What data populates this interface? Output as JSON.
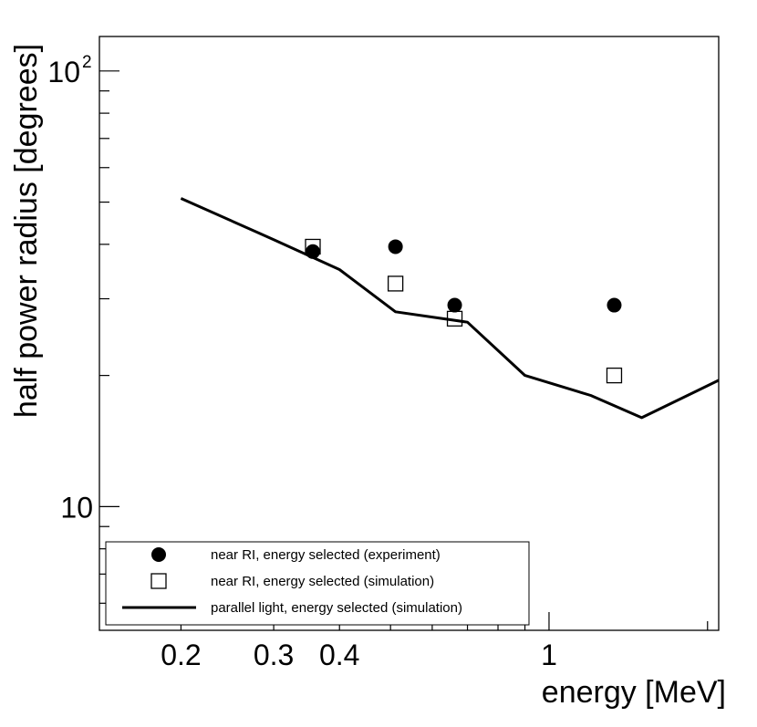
{
  "chart_data": {
    "type": "scatter",
    "x_scale": "log",
    "y_scale": "log",
    "xlabel": "energy [MeV]",
    "ylabel": "half power radius [degrees]",
    "xlim": [
      0.14,
      2.1
    ],
    "ylim": [
      5.2,
      120
    ],
    "x_tick_labels": [
      {
        "value": 0.2,
        "label": "0.2"
      },
      {
        "value": 0.3,
        "label": "0.3"
      },
      {
        "value": 0.4,
        "label": "0.4"
      },
      {
        "value": 1,
        "label": "1"
      }
    ],
    "y_tick_labels": [
      {
        "value": 10,
        "label": "10",
        "base": "10",
        "exp": ""
      },
      {
        "value": 100,
        "label": "10^2",
        "base": "10",
        "exp": "2"
      }
    ],
    "x_minor_ticks": [
      0.2,
      0.3,
      0.4,
      0.5,
      0.6,
      0.7,
      0.8,
      0.9,
      1,
      2
    ],
    "y_minor_ticks": [
      6,
      7,
      8,
      9,
      10,
      20,
      30,
      40,
      50,
      60,
      70,
      80,
      90,
      100
    ],
    "grid": false,
    "legend_position": "bottom-left",
    "series": [
      {
        "name": "near RI, energy selected (experiment)",
        "marker": "filled-circle",
        "color": "#000000",
        "x": [
          0.356,
          0.511,
          0.662,
          1.33
        ],
        "y": [
          38.5,
          39.5,
          29,
          29
        ]
      },
      {
        "name": "near RI, energy selected (simulation)",
        "marker": "open-square",
        "color": "#000000",
        "x": [
          0.356,
          0.511,
          0.662,
          1.33
        ],
        "y": [
          39.5,
          32.5,
          27,
          20
        ]
      },
      {
        "name": "parallel light, energy selected (simulation)",
        "marker": "line",
        "color": "#000000",
        "x": [
          0.2,
          0.3,
          0.4,
          0.511,
          0.7,
          0.9,
          1.2,
          1.5,
          2.1
        ],
        "y": [
          51,
          41,
          35,
          28,
          26.5,
          20,
          18,
          16,
          19.5
        ]
      }
    ]
  }
}
